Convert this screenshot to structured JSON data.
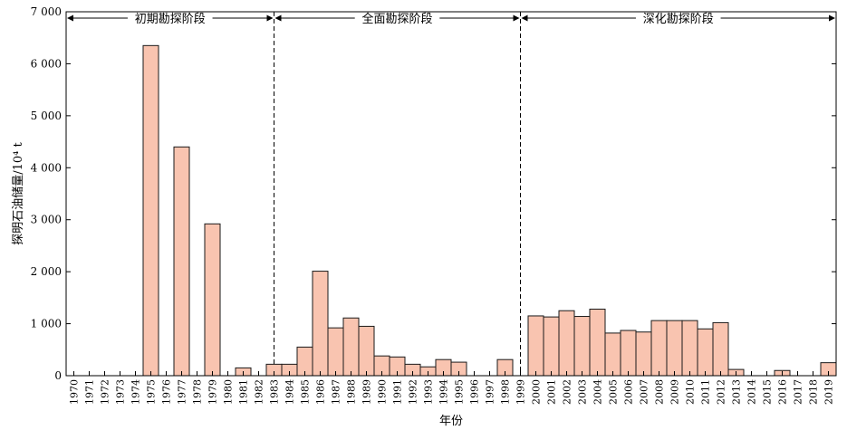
{
  "chart_data": {
    "type": "bar",
    "title": "",
    "xlabel": "年份",
    "ylabel": "探明石油储量/10⁴ t",
    "ylim": [
      0,
      7000
    ],
    "yticks": [
      0,
      1000,
      2000,
      3000,
      4000,
      5000,
      6000,
      7000
    ],
    "ytick_labels": [
      "0",
      "1 000",
      "2 000",
      "3 000",
      "4 000",
      "5 000",
      "6 000",
      "7 000"
    ],
    "bar_color": "#f9c4b0",
    "grid": false,
    "categories": [
      "1970",
      "1971",
      "1972",
      "1973",
      "1974",
      "1975",
      "1976",
      "1977",
      "1978",
      "1979",
      "1980",
      "1981",
      "1982",
      "1983",
      "1984",
      "1985",
      "1986",
      "1987",
      "1988",
      "1989",
      "1990",
      "1991",
      "1992",
      "1993",
      "1994",
      "1995",
      "1996",
      "1997",
      "1998",
      "1999",
      "2000",
      "2001",
      "2002",
      "2003",
      "2004",
      "2005",
      "2006",
      "2007",
      "2008",
      "2009",
      "2010",
      "2011",
      "2012",
      "2013",
      "2014",
      "2015",
      "2016",
      "2017",
      "2018",
      "2019"
    ],
    "values": [
      0,
      0,
      0,
      0,
      0,
      6350,
      0,
      4400,
      0,
      2920,
      0,
      150,
      0,
      220,
      220,
      550,
      2010,
      920,
      1110,
      950,
      380,
      360,
      220,
      170,
      310,
      260,
      0,
      0,
      310,
      0,
      1150,
      1130,
      1250,
      1140,
      1280,
      820,
      870,
      840,
      1060,
      1060,
      1060,
      900,
      1020,
      120,
      0,
      0,
      100,
      0,
      0,
      250
    ],
    "phases": [
      {
        "label": "初期勘探阶段",
        "start": 0,
        "end": 13.5
      },
      {
        "label": "全面勘探阶段",
        "start": 13.5,
        "end": 29.5
      },
      {
        "label": "深化勘探阶段",
        "start": 29.5,
        "end": 50
      }
    ]
  }
}
